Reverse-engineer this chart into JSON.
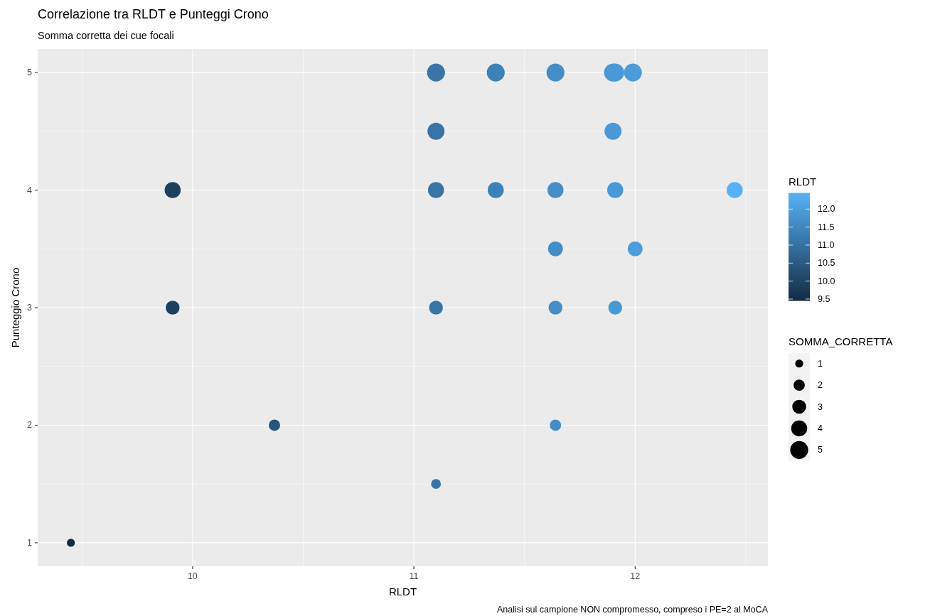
{
  "chart_data": {
    "type": "bubble",
    "title": "Correlazione tra RLDT e Punteggi Crono",
    "subtitle": "Somma corretta dei cue focali",
    "xlabel": "RLDT",
    "ylabel": "Punteggio Crono",
    "clabel": "RLDT",
    "legend_title": "SOMMA_CORRETTA",
    "annotations": [
      "Analisi sul campione NON compromesso, compreso i PE=2 al MoCA"
    ],
    "x": [
      9.45,
      9.91,
      9.91,
      10.37,
      11.1,
      11.1,
      11.1,
      11.1,
      11.1,
      11.37,
      11.37,
      11.64,
      11.64,
      11.64,
      11.64,
      11.64,
      11.9,
      11.91,
      11.9,
      11.91,
      11.91,
      11.99,
      12.0,
      12.45
    ],
    "values": [
      1,
      4,
      3,
      2,
      5,
      4.5,
      4,
      3,
      1.5,
      5,
      4,
      5,
      4,
      3.5,
      3,
      2,
      5,
      5,
      4.5,
      4,
      3,
      5,
      3.5,
      4
    ],
    "sizes": [
      1,
      4,
      3,
      2,
      5,
      4.5,
      4,
      3,
      1.5,
      5,
      4,
      5,
      4,
      3.5,
      3,
      2,
      5,
      5,
      4.5,
      4,
      3,
      5,
      3.5,
      4
    ],
    "size_legend": [
      1,
      2,
      3,
      4,
      5
    ],
    "cvalues": [
      9.45,
      9.91,
      9.91,
      10.37,
      11.1,
      11.1,
      11.1,
      11.1,
      11.1,
      11.37,
      11.37,
      11.64,
      11.64,
      11.64,
      11.64,
      11.64,
      11.9,
      11.91,
      11.9,
      11.91,
      11.91,
      11.99,
      12.0,
      12.45
    ],
    "colors": [
      "#132b43",
      "#1d405f",
      "#1d405f",
      "#28547a",
      "#3875a6",
      "#3875a6",
      "#3875a6",
      "#3875a6",
      "#3875a6",
      "#3e81b6",
      "#3e81b6",
      "#448dc6",
      "#448dc6",
      "#448dc6",
      "#448dc6",
      "#448dc6",
      "#4a98d6",
      "#4a99d7",
      "#4a98d6",
      "#4a99d7",
      "#4a99d7",
      "#4c9cdb",
      "#4c9ddc",
      "#56b1f7"
    ],
    "clim": [
      9.45,
      12.45
    ],
    "cticks": [
      9.5,
      {
        "value": 10,
        "label": "10.0"
      },
      10.5,
      {
        "value": 11,
        "label": "11.0"
      },
      11.5,
      {
        "value": 12,
        "label": "12.0"
      }
    ],
    "xlim": [
      9.3,
      12.6
    ],
    "xticks": [
      10,
      11,
      12
    ],
    "ylim": [
      0.8,
      5.2
    ],
    "yticks": [
      1,
      2,
      3,
      4,
      5
    ],
    "grid": true,
    "marker": "circle"
  }
}
